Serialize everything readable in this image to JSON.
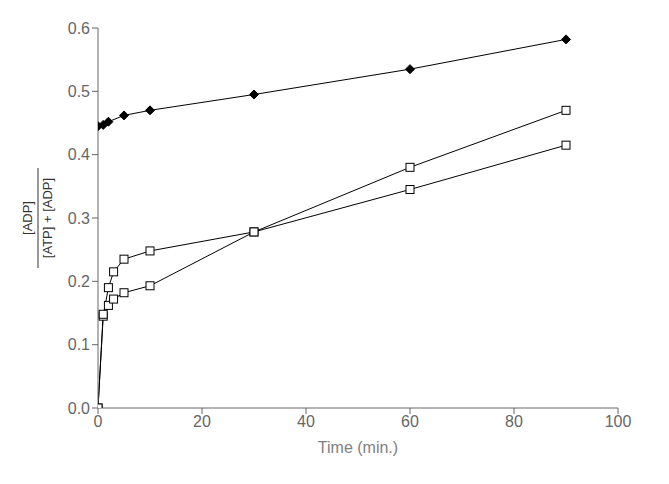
{
  "chart_data": {
    "type": "line",
    "xlabel": "Time (min.)",
    "ylabel": "[ADP]\n[ATP] + [ADP]",
    "series": [
      {
        "color": "black",
        "marker": "diamond",
        "x": [
          0,
          1,
          2,
          5,
          10,
          30,
          60,
          90
        ],
        "values": [
          0.445,
          0.447,
          0.452,
          0.462,
          0.47,
          0.495,
          0.535,
          0.582
        ]
      },
      {
        "color": "black",
        "marker": "open_square",
        "x": [
          0,
          1,
          2,
          3,
          5,
          10,
          30,
          60,
          90
        ],
        "values": [
          0.0,
          0.145,
          0.19,
          0.215,
          0.235,
          0.248,
          0.278,
          0.345,
          0.415
        ]
      },
      {
        "color": "black",
        "marker": "open_square",
        "x": [
          0,
          1,
          2,
          3,
          5,
          10,
          30,
          60,
          90
        ],
        "values": [
          0.0,
          0.148,
          0.162,
          0.172,
          0.182,
          0.193,
          0.278,
          0.38,
          0.47
        ]
      }
    ],
    "xlim": [
      0,
      100
    ],
    "ylim": [
      0.0,
      0.6
    ],
    "xticks": [
      0,
      20,
      40,
      60,
      80,
      100
    ],
    "yticks": [
      {
        "value": 0.0,
        "label": "0.0"
      },
      0.1,
      0.2,
      0.3,
      0.4,
      0.5,
      0.6
    ],
    "grid": false
  }
}
